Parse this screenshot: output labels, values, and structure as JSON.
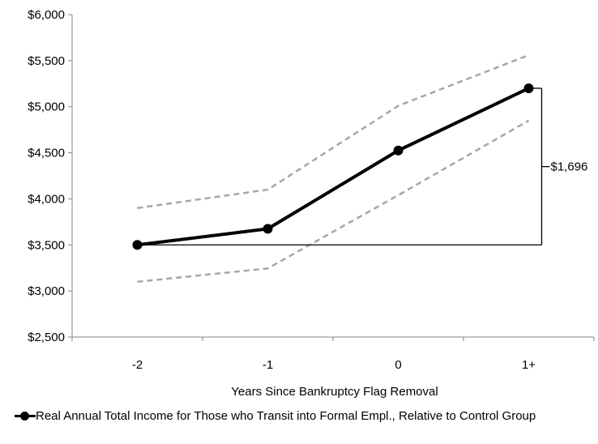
{
  "chart_data": {
    "type": "line",
    "title": "",
    "xlabel": "Years Since Bankruptcy Flag Removal",
    "ylabel": "",
    "categories": [
      "-2",
      "-1",
      "0",
      "1+"
    ],
    "ylim": [
      2500,
      6000
    ],
    "yticks": [
      2500,
      3000,
      3500,
      4000,
      4500,
      5000,
      5500,
      6000
    ],
    "ytick_labels": [
      "$2,500",
      "$3,000",
      "$3,500",
      "$4,000",
      "$4,500",
      "$5,000",
      "$5,500",
      "$6,000"
    ],
    "grid": false,
    "legend_position": "bottom",
    "series": [
      {
        "name": "Real Annual Total Income for Those who Transit into Formal Empl., Relative to Control Group",
        "values": [
          3500,
          3675,
          4525,
          5200
        ],
        "color": "#000000",
        "style": "solid-markers"
      },
      {
        "role": "upper confidence bound",
        "values": [
          3900,
          4100,
          5010,
          5560
        ],
        "color": "#a6a6a6",
        "style": "dashed"
      },
      {
        "role": "lower confidence bound",
        "values": [
          3100,
          3245,
          4040,
          4850
        ],
        "color": "#a6a6a6",
        "style": "dashed"
      }
    ],
    "annotations": [
      {
        "label": "$1,696",
        "from_value": 3500,
        "to_value": 5200,
        "at_category": "1+",
        "type": "bracket"
      }
    ]
  }
}
